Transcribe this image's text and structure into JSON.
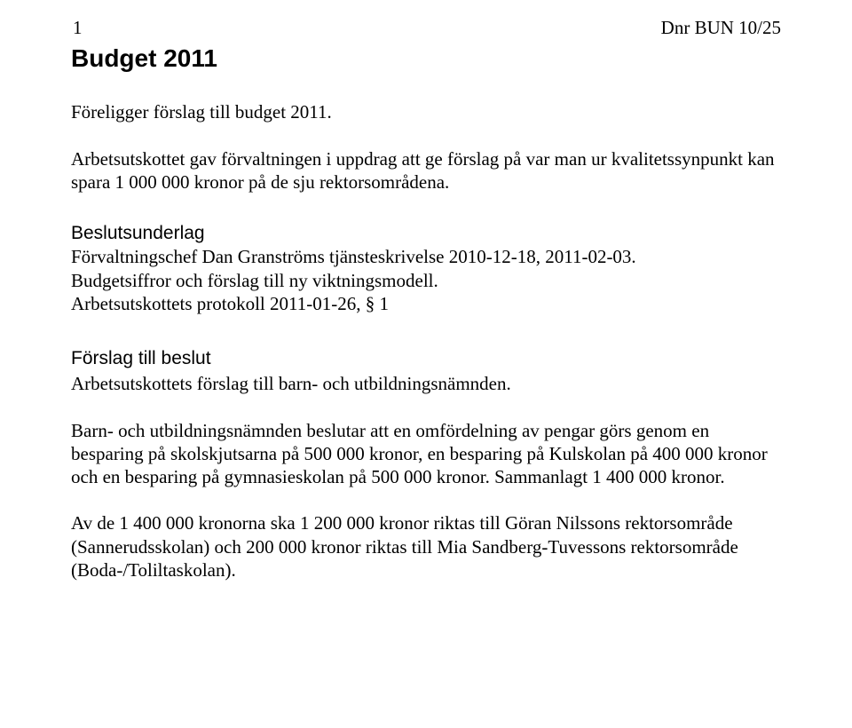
{
  "top": {
    "num": "1",
    "dnr": "Dnr BUN 10/25"
  },
  "heading": "Budget 2011",
  "para1": "Föreligger förslag till budget 2011.",
  "para2": "Arbetsutskottet gav förvaltningen i uppdrag att ge förslag på var man ur kvalitetssynpunkt kan spara 1 000 000 kronor på de sju rektorsområdena.",
  "underlag_head": "Beslutsunderlag",
  "underlag_l1": "Förvaltningschef Dan Granströms tjänsteskrivelse 2010-12-18, 2011-02-03.",
  "underlag_l2": "Budgetsiffror och förslag till ny viktningsmodell.",
  "underlag_l3": "Arbetsutskottets protokoll 2011-01-26, § 1",
  "forslag_head": "Förslag till beslut",
  "forslag_l1": "Arbetsutskottets förslag till barn- och utbildningsnämnden.",
  "para3": "Barn- och utbildningsnämnden beslutar att en omfördelning av pengar görs genom en besparing på skolskjutsarna på 500 000 kronor, en besparing på Kulskolan på 400 000 kronor och en besparing på gymnasieskolan på 500 000 kronor. Sammanlagt 1 400 000 kronor.",
  "para4": "Av de 1 400 000 kronorna ska 1 200 000 kronor riktas till Göran Nilssons rektorsområde (Sannerudsskolan) och 200 000 kronor riktas till Mia Sandberg-Tuvessons rektorsområde (Boda-/Toliltaskolan)."
}
